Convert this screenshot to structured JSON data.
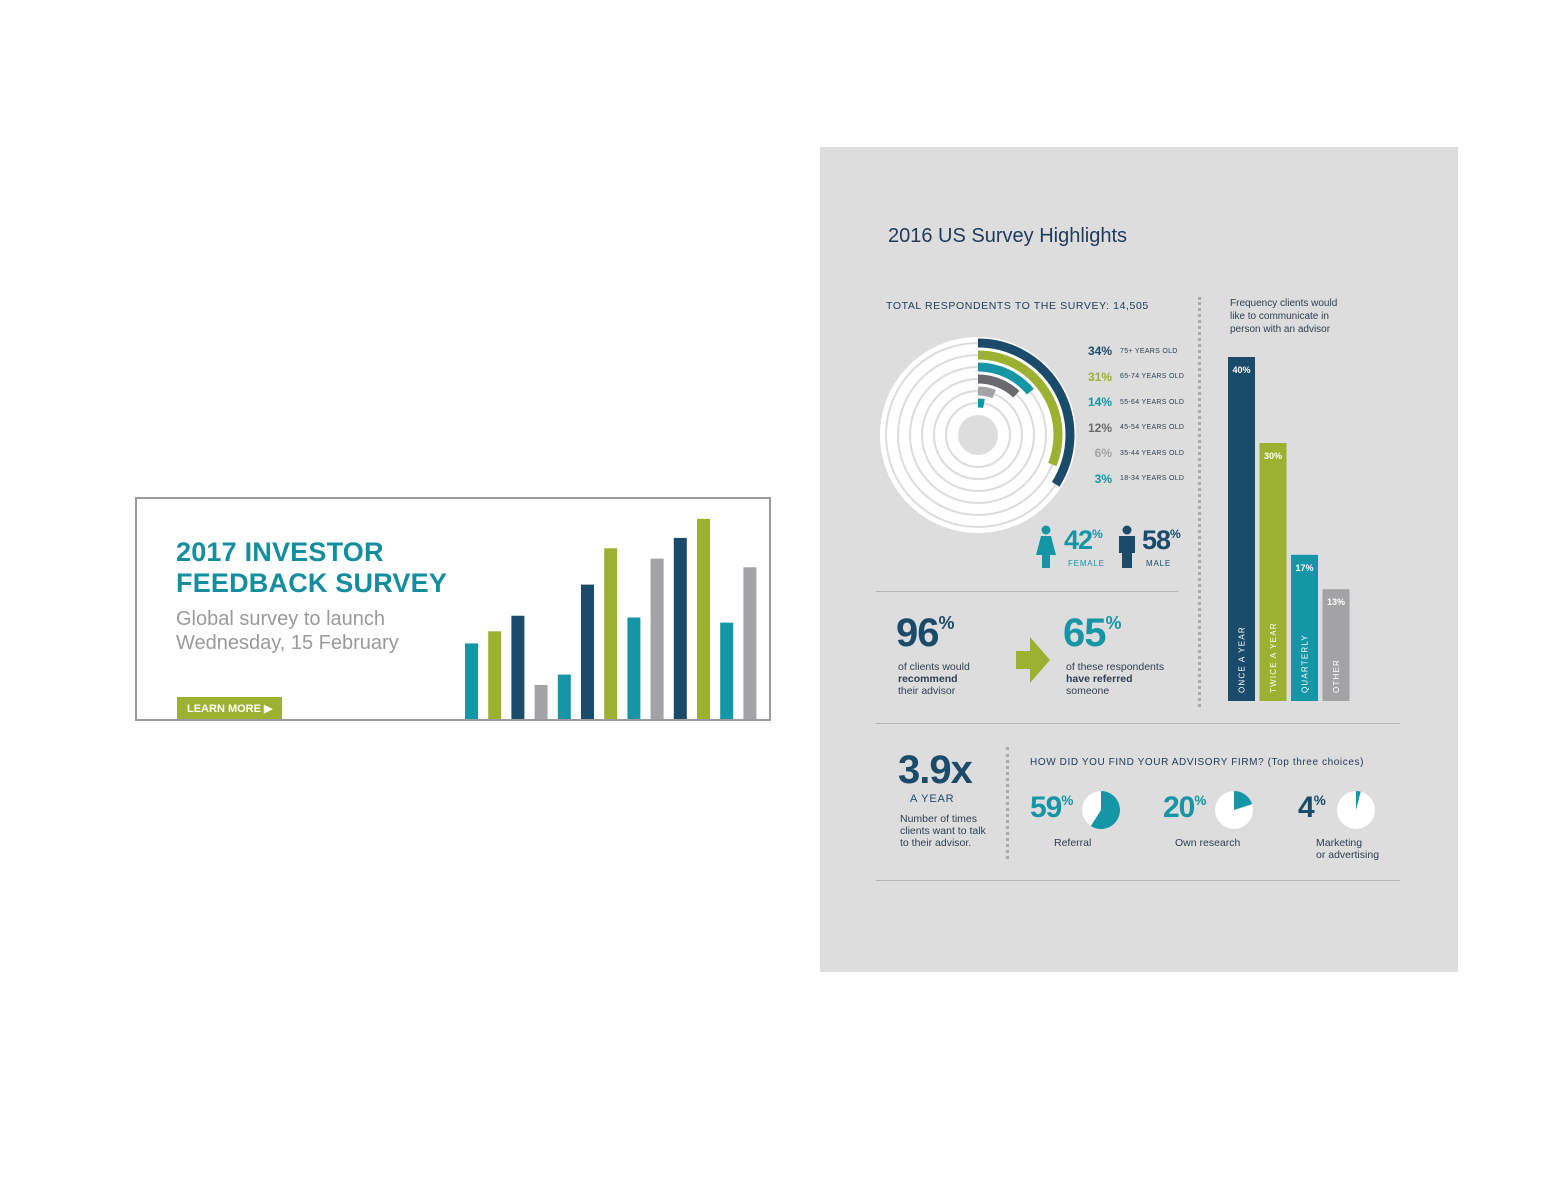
{
  "banner": {
    "title_line1": "2017 INVESTOR",
    "title_line2": "FEEDBACK SURVEY",
    "subtitle_line1": "Global survey to launch",
    "subtitle_line2": "Wednesday, 15 February",
    "button_label": "LEARN MORE ▶"
  },
  "infographic": {
    "title": "2016 US Survey Highlights",
    "total_label": "TOTAL RESPONDENTS TO THE SURVEY: 14,505",
    "gender": {
      "female_value": "42",
      "female_label": "FEMALE",
      "male_value": "58",
      "male_label": "MALE"
    },
    "recommend": {
      "value": "96",
      "text_line1": "of clients would",
      "text_line2": "recommend",
      "text_line3": "their advisor"
    },
    "referred": {
      "value": "65",
      "text_line1": "of these respondents",
      "text_line2": "have referred",
      "text_line3": "someone"
    },
    "frequency_title_line1": "Frequency clients would",
    "frequency_title_line2": "like to communicate in",
    "frequency_title_line3": "person with an advisor",
    "times": {
      "value": "3.9x",
      "unit": "A YEAR",
      "text_line1": "Number of times",
      "text_line2": "clients want to talk",
      "text_line3": "to their advisor."
    },
    "find_title": "HOW DID YOU FIND YOUR ADVISORY FIRM? (Top three choices)",
    "find_items": [
      {
        "value": "59",
        "label_line1": "Referral",
        "label_line2": ""
      },
      {
        "value": "20",
        "label_line1": "Own research",
        "label_line2": ""
      },
      {
        "value": "4",
        "label_line1": "Marketing",
        "label_line2": "or advertising"
      }
    ]
  },
  "colors": {
    "navy": "#1b4b6b",
    "green": "#9cb031",
    "teal": "#1596a6",
    "gray": "#a3a3a6",
    "dark_gray": "#6a6a6c",
    "title_teal": "#138d9f"
  },
  "chart_data": [
    {
      "type": "bar",
      "title": "",
      "note": "decorative banner bar chart, no axes",
      "values": [
        46,
        53,
        62,
        22,
        28,
        80,
        101,
        61,
        95,
        107,
        118,
        58,
        90
      ],
      "colors": [
        "teal",
        "green",
        "navy",
        "gray",
        "teal",
        "navy",
        "green",
        "teal",
        "gray",
        "navy",
        "green",
        "teal",
        "gray"
      ]
    },
    {
      "type": "pie",
      "title": "TOTAL RESPONDENTS TO THE SURVEY: 14,505",
      "style": "radial-bar",
      "categories": [
        "75+ YEARS OLD",
        "65-74 YEARS OLD",
        "55-64 YEARS OLD",
        "45-54 YEARS OLD",
        "35-44 YEARS OLD",
        "18-34 YEARS OLD"
      ],
      "labels": [
        "34%",
        "31%",
        "14%",
        "12%",
        "6%",
        "3%"
      ],
      "values": [
        34,
        31,
        14,
        12,
        6,
        3
      ],
      "colors": [
        "navy",
        "green",
        "teal",
        "dark_gray",
        "gray",
        "teal"
      ]
    },
    {
      "type": "bar",
      "title": "Frequency clients would like to communicate in person with an advisor",
      "categories": [
        "ONCE A YEAR",
        "TWICE A YEAR",
        "QUARTERLY",
        "OTHER"
      ],
      "labels": [
        "40%",
        "30%",
        "17%",
        "13%"
      ],
      "values": [
        40,
        30,
        17,
        13
      ],
      "colors": [
        "navy",
        "green",
        "teal",
        "gray"
      ]
    },
    {
      "type": "pie",
      "title": "HOW DID YOU FIND YOUR ADVISORY FIRM? (Top three choices)",
      "categories": [
        "Referral",
        "Own research",
        "Marketing or advertising"
      ],
      "values": [
        59,
        20,
        4
      ]
    }
  ]
}
